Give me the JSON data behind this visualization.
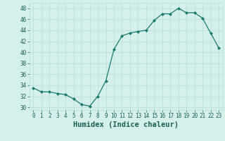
{
  "x": [
    0,
    1,
    2,
    3,
    4,
    5,
    6,
    7,
    8,
    9,
    10,
    11,
    12,
    13,
    14,
    15,
    16,
    17,
    18,
    19,
    20,
    21,
    22,
    23
  ],
  "y": [
    33.5,
    32.8,
    32.8,
    32.5,
    32.3,
    31.5,
    30.5,
    30.2,
    32.0,
    34.8,
    40.5,
    43.0,
    43.5,
    43.8,
    44.0,
    45.8,
    47.0,
    47.0,
    48.0,
    47.2,
    47.2,
    46.2,
    43.5,
    40.8
  ],
  "line_color": "#1a7a6e",
  "marker": "D",
  "marker_size": 2,
  "bg_color": "#d5f0eb",
  "grid_color": "#b8ddd8",
  "xlabel": "Humidex (Indice chaleur)",
  "xlim": [
    -0.5,
    23.5
  ],
  "ylim": [
    29.5,
    49
  ],
  "yticks": [
    30,
    32,
    34,
    36,
    38,
    40,
    42,
    44,
    46,
    48
  ],
  "xticks": [
    0,
    1,
    2,
    3,
    4,
    5,
    6,
    7,
    8,
    9,
    10,
    11,
    12,
    13,
    14,
    15,
    16,
    17,
    18,
    19,
    20,
    21,
    22,
    23
  ],
  "tick_label_size": 5.5,
  "xlabel_fontsize": 7.5,
  "tick_color": "#1a6055",
  "line_width": 0.9
}
